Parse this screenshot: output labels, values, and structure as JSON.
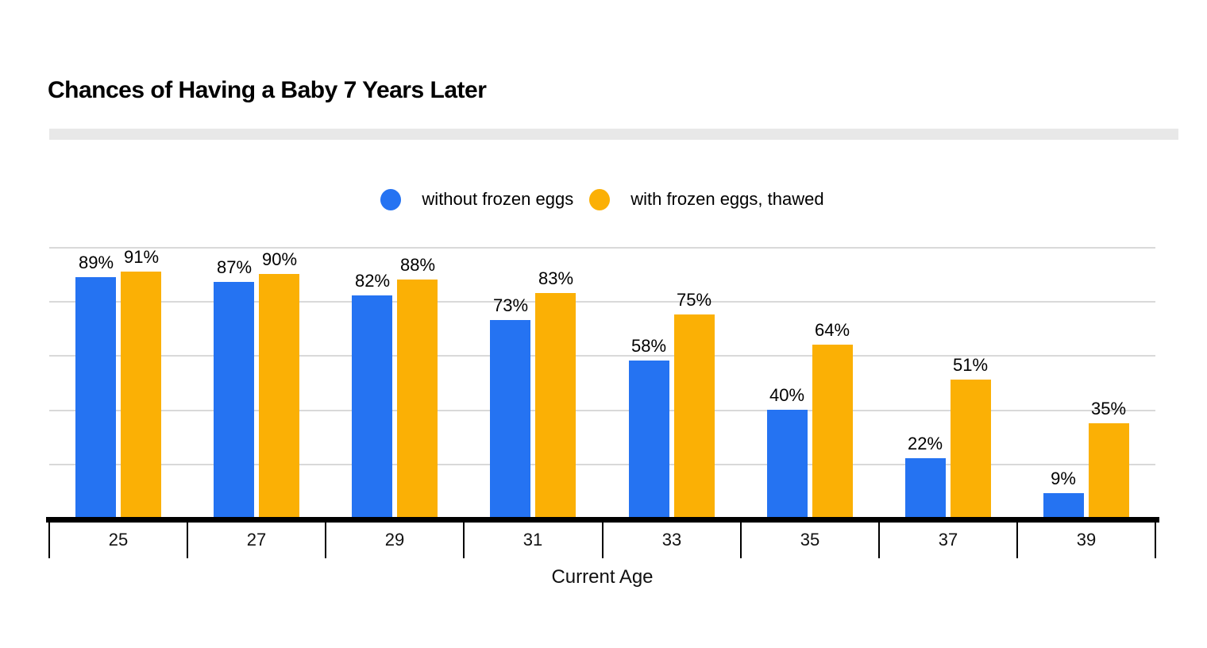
{
  "header": {
    "title": "Chances of Having a Baby 7 Years Later"
  },
  "colors": {
    "series_blue": "#2573F2",
    "series_amber": "#FBB005",
    "gridline": "#D9D9D9",
    "axis_line": "#000000",
    "title_divider": "#E8E8E8",
    "text": "#000000",
    "background": "#FFFFFF"
  },
  "chart_data": {
    "type": "bar",
    "title": "Chances of Having a Baby 7 Years Later",
    "categories": [
      "25",
      "27",
      "29",
      "31",
      "33",
      "35",
      "37",
      "39"
    ],
    "series": [
      {
        "name": "without frozen eggs",
        "color": "#2573F2",
        "values": [
          89,
          87,
          82,
          73,
          58,
          40,
          22,
          9
        ]
      },
      {
        "name": "with frozen eggs, thawed",
        "color": "#FBB005",
        "values": [
          91,
          90,
          88,
          83,
          75,
          64,
          51,
          35
        ]
      }
    ],
    "value_suffix": "%",
    "data_labels": true,
    "xlabel": "Current Age",
    "ylabel": "",
    "ylim": [
      0,
      100
    ],
    "grid_interval": 20,
    "grid": true,
    "legend_position": "top-center"
  }
}
